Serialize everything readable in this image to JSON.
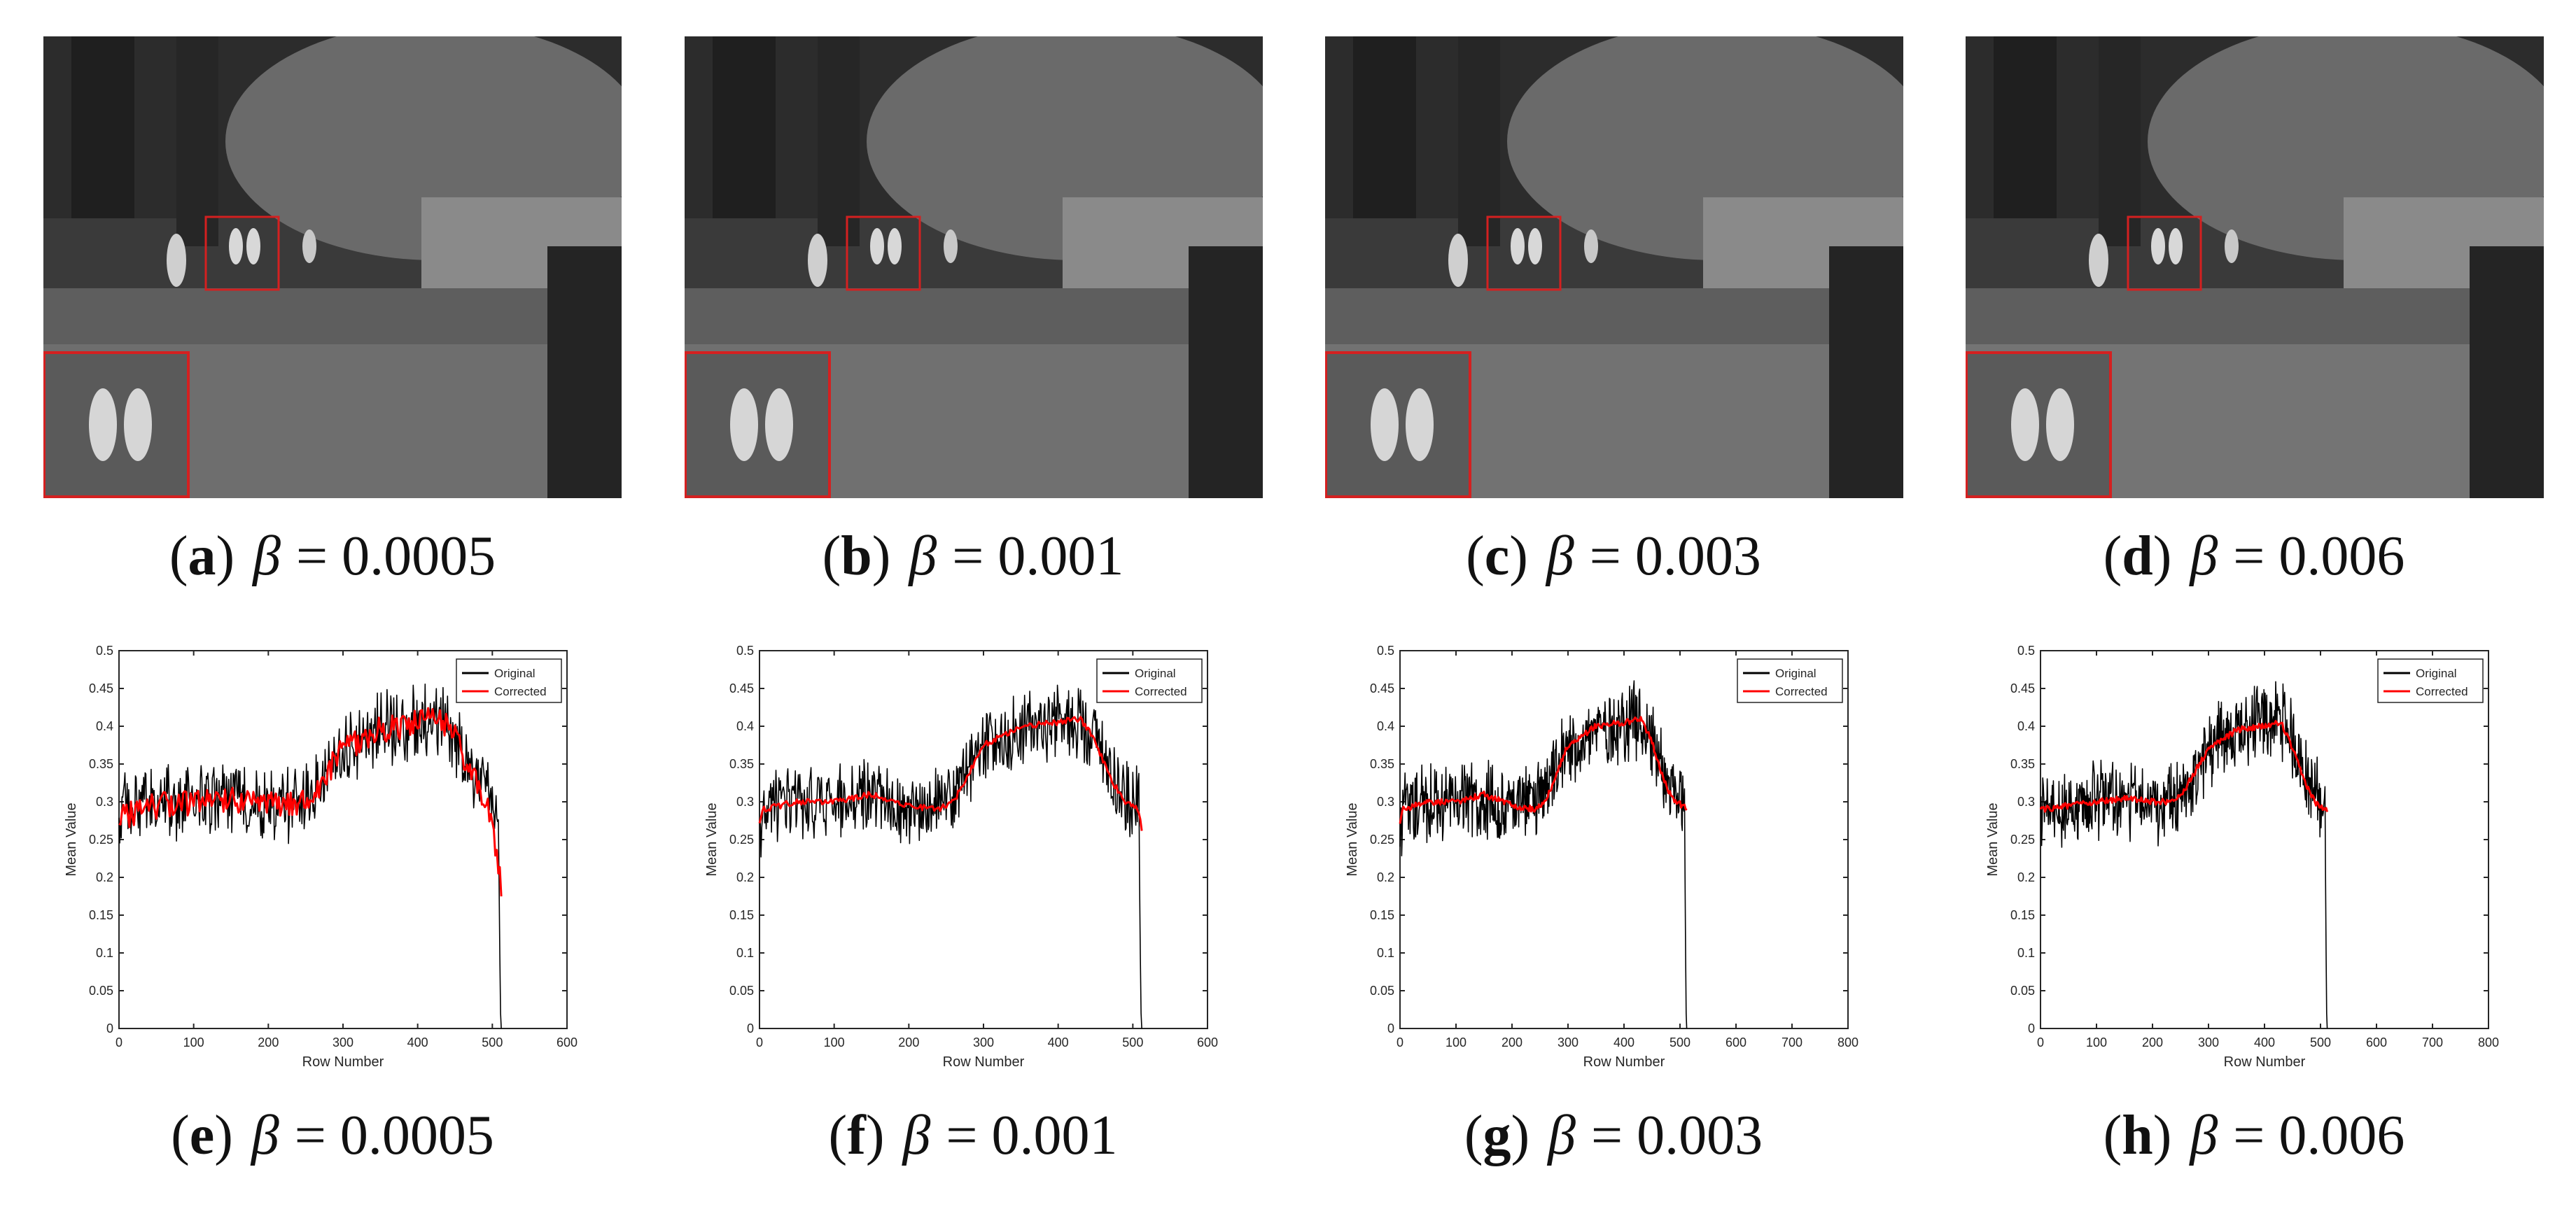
{
  "colors": {
    "original": "#000000",
    "corrected": "#ff0000",
    "inset_border": "#d42020"
  },
  "panels": [
    {
      "letter": "a",
      "beta": "0.0005"
    },
    {
      "letter": "b",
      "beta": "0.001"
    },
    {
      "letter": "c",
      "beta": "0.003"
    },
    {
      "letter": "d",
      "beta": "0.006"
    }
  ],
  "plot_captions": [
    {
      "letter": "e",
      "beta": "0.0005"
    },
    {
      "letter": "f",
      "beta": "0.001"
    },
    {
      "letter": "g",
      "beta": "0.003"
    },
    {
      "letter": "h",
      "beta": "0.006"
    }
  ],
  "beta_symbol": "β",
  "chart_data": [
    {
      "type": "line",
      "xlabel": "Row Number",
      "ylabel": "Mean Value",
      "xlim": [
        0,
        600
      ],
      "ylim": [
        0,
        0.5
      ],
      "xticks": [
        "0",
        "100",
        "200",
        "300",
        "400",
        "500",
        "600"
      ],
      "yticks": [
        "0",
        "0.05",
        "0.1",
        "0.15",
        "0.2",
        "0.25",
        "0.3",
        "0.35",
        "0.4",
        "0.45",
        "0.5"
      ],
      "legend": [
        "Original",
        "Corrected"
      ],
      "legend_position": "top-right",
      "series": [
        {
          "name": "Original",
          "x": [
            0,
            5,
            50,
            100,
            150,
            200,
            240,
            260,
            300,
            350,
            400,
            430,
            460,
            480,
            500,
            508,
            509,
            510,
            511,
            512
          ],
          "values": [
            0.26,
            0.29,
            0.295,
            0.3,
            0.305,
            0.295,
            0.3,
            0.31,
            0.37,
            0.395,
            0.405,
            0.41,
            0.37,
            0.32,
            0.3,
            0.3,
            0.2,
            0.1,
            0.02,
            0.0
          ]
        },
        {
          "name": "Corrected",
          "x": [
            0,
            5,
            50,
            100,
            150,
            200,
            240,
            260,
            300,
            350,
            400,
            430,
            450,
            470,
            490,
            500,
            505,
            510,
            512
          ],
          "values": [
            0.26,
            0.28,
            0.295,
            0.3,
            0.305,
            0.295,
            0.3,
            0.31,
            0.37,
            0.395,
            0.405,
            0.41,
            0.39,
            0.34,
            0.3,
            0.27,
            0.24,
            0.2,
            0.19
          ]
        }
      ]
    },
    {
      "type": "line",
      "xlabel": "Row Number",
      "ylabel": "Mean Value",
      "xlim": [
        0,
        600
      ],
      "ylim": [
        0,
        0.5
      ],
      "xticks": [
        "0",
        "100",
        "200",
        "300",
        "400",
        "500",
        "600"
      ],
      "yticks": [
        "0",
        "0.05",
        "0.1",
        "0.15",
        "0.2",
        "0.25",
        "0.3",
        "0.35",
        "0.4",
        "0.45",
        "0.5"
      ],
      "legend": [
        "Original",
        "Corrected"
      ],
      "legend_position": "top-right",
      "series": [
        {
          "name": "Original",
          "x": [
            0,
            5,
            50,
            100,
            150,
            200,
            240,
            260,
            300,
            350,
            400,
            430,
            460,
            480,
            500,
            508,
            509,
            510,
            511,
            512
          ],
          "values": [
            0.26,
            0.29,
            0.295,
            0.3,
            0.305,
            0.295,
            0.3,
            0.31,
            0.37,
            0.395,
            0.405,
            0.41,
            0.37,
            0.32,
            0.3,
            0.3,
            0.2,
            0.1,
            0.02,
            0.0
          ]
        },
        {
          "name": "Corrected",
          "x": [
            0,
            5,
            50,
            100,
            150,
            200,
            240,
            260,
            300,
            350,
            400,
            430,
            450,
            470,
            490,
            505,
            510,
            512
          ],
          "values": [
            0.27,
            0.29,
            0.3,
            0.3,
            0.31,
            0.295,
            0.29,
            0.3,
            0.375,
            0.4,
            0.405,
            0.41,
            0.38,
            0.33,
            0.3,
            0.295,
            0.28,
            0.26
          ]
        }
      ]
    },
    {
      "type": "line",
      "xlabel": "Row Number",
      "ylabel": "Mean Value",
      "xlim": [
        0,
        800
      ],
      "ylim": [
        0,
        0.5
      ],
      "xticks": [
        "0",
        "100",
        "200",
        "300",
        "400",
        "500",
        "600",
        "700",
        "800"
      ],
      "yticks": [
        "0",
        "0.05",
        "0.1",
        "0.15",
        "0.2",
        "0.25",
        "0.3",
        "0.35",
        "0.4",
        "0.45",
        "0.5"
      ],
      "legend": [
        "Original",
        "Corrected"
      ],
      "legend_position": "top-right",
      "series": [
        {
          "name": "Original",
          "x": [
            0,
            5,
            50,
            100,
            150,
            200,
            240,
            260,
            300,
            350,
            400,
            430,
            460,
            480,
            500,
            508,
            509,
            510,
            511,
            512
          ],
          "values": [
            0.26,
            0.29,
            0.295,
            0.3,
            0.305,
            0.295,
            0.3,
            0.31,
            0.37,
            0.395,
            0.405,
            0.41,
            0.37,
            0.32,
            0.3,
            0.3,
            0.2,
            0.1,
            0.02,
            0.0
          ]
        },
        {
          "name": "Corrected",
          "x": [
            0,
            5,
            50,
            100,
            150,
            200,
            240,
            260,
            300,
            350,
            400,
            430,
            450,
            470,
            490,
            505,
            512
          ],
          "values": [
            0.27,
            0.29,
            0.3,
            0.3,
            0.31,
            0.295,
            0.29,
            0.3,
            0.375,
            0.4,
            0.405,
            0.41,
            0.38,
            0.33,
            0.3,
            0.295,
            0.29
          ]
        }
      ]
    },
    {
      "type": "line",
      "xlabel": "Row Number",
      "ylabel": "Mean Value",
      "xlim": [
        0,
        800
      ],
      "ylim": [
        0,
        0.5
      ],
      "xticks": [
        "0",
        "100",
        "200",
        "300",
        "400",
        "500",
        "600",
        "700",
        "800"
      ],
      "yticks": [
        "0",
        "0.05",
        "0.1",
        "0.15",
        "0.2",
        "0.25",
        "0.3",
        "0.35",
        "0.4",
        "0.45",
        "0.5"
      ],
      "legend": [
        "Original",
        "Corrected"
      ],
      "legend_position": "top-right",
      "series": [
        {
          "name": "Original",
          "x": [
            0,
            5,
            50,
            100,
            150,
            200,
            240,
            260,
            300,
            350,
            400,
            430,
            460,
            480,
            500,
            508,
            509,
            510,
            511,
            512
          ],
          "values": [
            0.26,
            0.29,
            0.295,
            0.3,
            0.305,
            0.295,
            0.3,
            0.31,
            0.37,
            0.395,
            0.405,
            0.41,
            0.37,
            0.32,
            0.3,
            0.3,
            0.2,
            0.1,
            0.02,
            0.0
          ]
        },
        {
          "name": "Corrected",
          "x": [
            0,
            5,
            50,
            100,
            150,
            200,
            240,
            260,
            300,
            350,
            400,
            430,
            450,
            470,
            490,
            505,
            512
          ],
          "values": [
            0.29,
            0.29,
            0.295,
            0.3,
            0.305,
            0.3,
            0.3,
            0.32,
            0.37,
            0.395,
            0.4,
            0.405,
            0.37,
            0.33,
            0.3,
            0.29,
            0.29
          ]
        }
      ]
    }
  ]
}
